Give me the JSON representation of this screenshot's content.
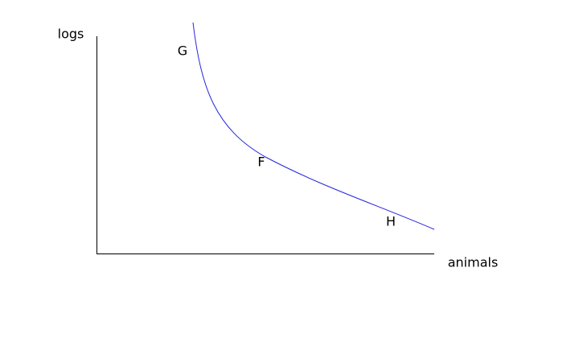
{
  "axes": {
    "y_label": "logs",
    "x_label": "animals"
  },
  "points": [
    {
      "label": "G"
    },
    {
      "label": "F"
    },
    {
      "label": "H"
    }
  ]
}
